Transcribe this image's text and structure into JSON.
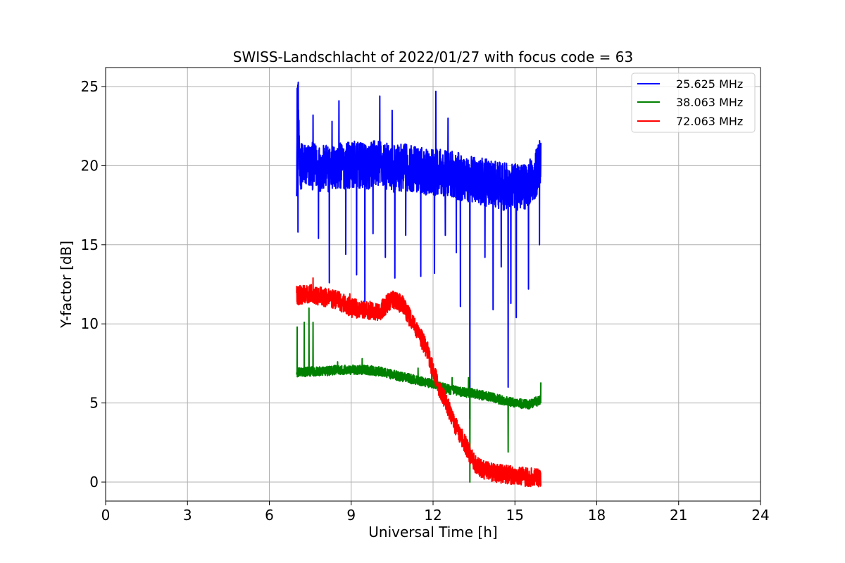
{
  "chart_data": {
    "type": "line",
    "title": "SWISS-Landschlacht of 2022/01/27 with focus code = 63",
    "xlabel": "Universal Time [h]",
    "ylabel": "Y-factor [dB]",
    "xlim": [
      0,
      24
    ],
    "ylim": [
      -1.2,
      26.2
    ],
    "xticks": [
      0,
      3,
      6,
      9,
      12,
      15,
      18,
      21,
      24
    ],
    "yticks": [
      0,
      5,
      10,
      15,
      20,
      25
    ],
    "xtick_labels": [
      "0",
      "3",
      "6",
      "9",
      "12",
      "15",
      "18",
      "21",
      "24"
    ],
    "ytick_labels": [
      "0",
      "5",
      "10",
      "15",
      "20",
      "25"
    ],
    "grid": true,
    "legend_position": "top-right",
    "series": [
      {
        "name": "25.625 MHz",
        "color": "#0000ff",
        "x": [
          7.0,
          7.05,
          7.1,
          7.5,
          8.0,
          8.5,
          9.0,
          9.5,
          10.0,
          10.5,
          11.0,
          11.5,
          12.0,
          12.5,
          13.0,
          13.5,
          14.0,
          14.5,
          15.0,
          15.5,
          15.8,
          15.95
        ],
        "y": [
          19.5,
          24.8,
          20.0,
          20.0,
          19.8,
          19.9,
          20.1,
          19.9,
          20.2,
          19.8,
          19.9,
          19.7,
          19.6,
          19.5,
          19.3,
          19.1,
          18.9,
          18.7,
          18.6,
          18.8,
          19.6,
          20.5
        ],
        "noise": 1.5,
        "spikes_up": [
          [
            7.02,
            24.9
          ],
          [
            8.55,
            24.1
          ],
          [
            10.05,
            24.4
          ],
          [
            10.5,
            23.5
          ],
          [
            12.1,
            24.7
          ],
          [
            12.55,
            23.0
          ],
          [
            7.6,
            23.2
          ],
          [
            8.3,
            22.8
          ]
        ],
        "spikes_down": [
          [
            7.05,
            15.8
          ],
          [
            7.8,
            15.4
          ],
          [
            8.2,
            12.6
          ],
          [
            8.8,
            14.4
          ],
          [
            9.2,
            13.1
          ],
          [
            9.5,
            11.4
          ],
          [
            9.8,
            15.7
          ],
          [
            10.25,
            14.2
          ],
          [
            10.6,
            12.9
          ],
          [
            11.0,
            15.6
          ],
          [
            11.55,
            13.0
          ],
          [
            12.05,
            13.2
          ],
          [
            12.45,
            15.6
          ],
          [
            12.85,
            14.5
          ],
          [
            13.0,
            11.1
          ],
          [
            13.35,
            4.0
          ],
          [
            13.9,
            14.2
          ],
          [
            14.2,
            10.9
          ],
          [
            14.5,
            13.6
          ],
          [
            14.75,
            6.0
          ],
          [
            14.85,
            11.3
          ],
          [
            15.05,
            10.4
          ],
          [
            15.5,
            12.2
          ],
          [
            15.9,
            15.0
          ]
        ]
      },
      {
        "name": "38.063 MHz",
        "color": "#008000",
        "x": [
          7.0,
          7.5,
          8.0,
          8.5,
          9.0,
          9.5,
          10.0,
          10.5,
          11.0,
          11.5,
          12.0,
          12.5,
          13.0,
          13.5,
          14.0,
          14.5,
          15.0,
          15.5,
          15.95
        ],
        "y": [
          6.9,
          7.0,
          7.0,
          7.1,
          7.1,
          7.1,
          7.0,
          6.8,
          6.6,
          6.4,
          6.2,
          5.9,
          5.7,
          5.6,
          5.4,
          5.2,
          5.0,
          4.9,
          5.2
        ],
        "noise": 0.3,
        "spikes_up": [
          [
            7.02,
            9.8
          ],
          [
            7.28,
            10.1
          ],
          [
            7.45,
            11.0
          ],
          [
            7.6,
            10.1
          ],
          [
            8.5,
            7.6
          ],
          [
            9.4,
            7.8
          ],
          [
            11.45,
            7.2
          ],
          [
            11.95,
            7.5
          ],
          [
            12.7,
            6.6
          ],
          [
            13.3,
            6.6
          ],
          [
            15.95,
            6.3
          ]
        ],
        "spikes_down": [
          [
            13.35,
            0.0
          ],
          [
            14.75,
            1.9
          ]
        ]
      },
      {
        "name": "72.063 MHz",
        "color": "#ff0000",
        "x": [
          7.0,
          7.5,
          8.0,
          8.5,
          9.0,
          9.5,
          10.0,
          10.5,
          10.9,
          11.2,
          11.5,
          11.8,
          12.0,
          12.2,
          12.5,
          12.8,
          13.0,
          13.2,
          13.4,
          13.6,
          13.8,
          14.2,
          14.6,
          15.0,
          15.5,
          15.95
        ],
        "y": [
          11.8,
          11.9,
          11.7,
          11.5,
          11.0,
          10.9,
          10.7,
          11.6,
          11.2,
          10.2,
          9.3,
          8.3,
          7.0,
          6.1,
          5.0,
          3.6,
          3.0,
          2.3,
          1.6,
          1.0,
          0.8,
          0.6,
          0.5,
          0.4,
          0.3,
          0.3
        ],
        "noise": 0.6,
        "spikes_up": [
          [
            7.6,
            12.9
          ],
          [
            8.95,
            11.9
          ]
        ],
        "spikes_down": []
      }
    ]
  }
}
